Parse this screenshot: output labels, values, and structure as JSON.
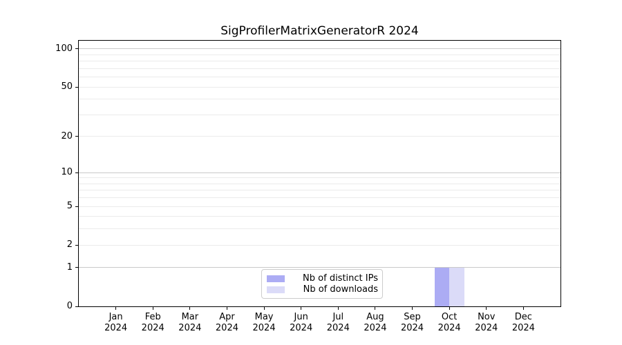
{
  "chart_data": {
    "type": "bar",
    "title": "SigProfilerMatrixGeneratorR 2024",
    "categories": [
      "Jan",
      "Feb",
      "Mar",
      "Apr",
      "May",
      "Jun",
      "Jul",
      "Aug",
      "Sep",
      "Oct",
      "Nov",
      "Dec"
    ],
    "category_year": "2024",
    "series": [
      {
        "name": "Nb of distinct IPs",
        "color": "#acacf4",
        "values": [
          0,
          0,
          0,
          0,
          0,
          0,
          0,
          0,
          0,
          1,
          0,
          0
        ]
      },
      {
        "name": "Nb of downloads",
        "color": "#dbdbf8",
        "values": [
          0,
          0,
          0,
          0,
          0,
          0,
          0,
          0,
          0,
          1,
          0,
          0
        ]
      }
    ],
    "y_axis": {
      "scale": "log10(value+1)",
      "tick_values": [
        0,
        1,
        2,
        5,
        10,
        20,
        50,
        100
      ],
      "y_max": 116,
      "major_grid_values": [
        1,
        10,
        100
      ],
      "minor_grid_values": [
        2,
        3,
        4,
        5,
        6,
        7,
        8,
        9,
        20,
        30,
        40,
        50,
        60,
        70,
        80,
        90
      ]
    },
    "xlabel": "",
    "ylabel": "",
    "grid": "on",
    "legend": {
      "position": "lower center",
      "entries": [
        "Nb of distinct IPs",
        "Nb of downloads"
      ]
    },
    "colors": {
      "major_grid": "#c9c9c9",
      "minor_grid": "#ebebeb",
      "spine": "#000000",
      "background": "#ffffff",
      "text": "#000000"
    }
  }
}
